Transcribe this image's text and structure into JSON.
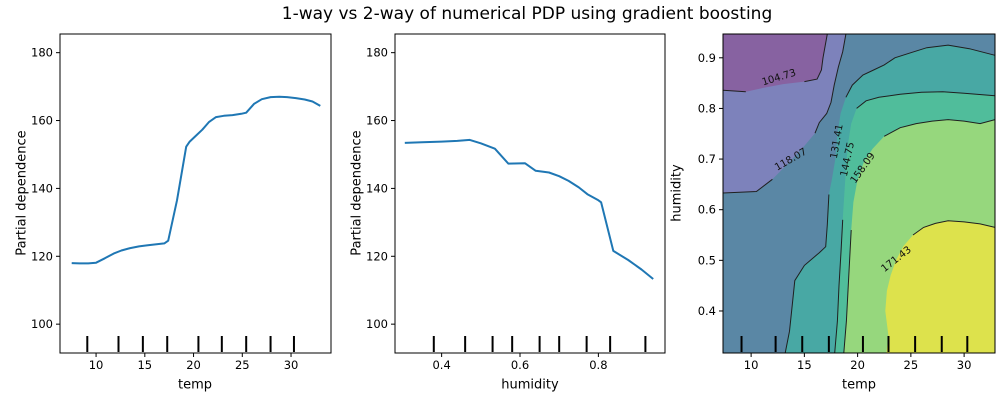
{
  "title": "1-way vs 2-way of numerical PDP using gradient boosting",
  "colors": {
    "line": "#1f77b4",
    "spine": "#000000",
    "contour_line": "#1f1f1f",
    "band_lt_104": "#8762a1",
    "band_104_118": "#7d82bb",
    "band_118_131": "#5a87a5",
    "band_131_144": "#48a8a4",
    "band_144_158": "#50bd9b",
    "band_158_171": "#96d77d",
    "band_gt_171": "#dde24c"
  },
  "chart_data": [
    {
      "id": "pdp-temp",
      "type": "line",
      "xlabel": "temp",
      "ylabel": "Partial dependence",
      "box": {
        "l": 60,
        "t": 34,
        "r": 331,
        "b": 353
      },
      "xlim": [
        6.3,
        34.1
      ],
      "ylim": [
        91.5,
        185.5
      ],
      "xticks": [
        10,
        15,
        20,
        25,
        30
      ],
      "xtick_labels": [
        "10",
        "15",
        "20",
        "25",
        "30"
      ],
      "yticks": [
        100,
        120,
        140,
        160,
        180
      ],
      "ytick_labels": [
        "100",
        "120",
        "140",
        "160",
        "180"
      ],
      "deciles": [
        9.1,
        12.3,
        14.8,
        17.3,
        20.5,
        22.9,
        25.4,
        27.9,
        30.3
      ],
      "points": [
        [
          7.5,
          118.0
        ],
        [
          8.3,
          117.9
        ],
        [
          9.2,
          117.9
        ],
        [
          10.0,
          118.1
        ],
        [
          10.9,
          119.4
        ],
        [
          11.8,
          120.8
        ],
        [
          12.6,
          121.7
        ],
        [
          13.5,
          122.4
        ],
        [
          14.4,
          122.9
        ],
        [
          15.2,
          123.2
        ],
        [
          16.1,
          123.5
        ],
        [
          17.0,
          123.8
        ],
        [
          17.4,
          124.6
        ],
        [
          18.3,
          136.5
        ],
        [
          19.25,
          152.3
        ],
        [
          19.6,
          153.8
        ],
        [
          20.2,
          155.4
        ],
        [
          20.9,
          157.3
        ],
        [
          21.6,
          159.6
        ],
        [
          22.3,
          161.0
        ],
        [
          23.1,
          161.4
        ],
        [
          24.0,
          161.6
        ],
        [
          24.9,
          162.0
        ],
        [
          25.4,
          162.3
        ],
        [
          26.2,
          164.9
        ],
        [
          27.0,
          166.3
        ],
        [
          27.9,
          166.9
        ],
        [
          28.8,
          167.0
        ],
        [
          29.6,
          166.9
        ],
        [
          30.5,
          166.6
        ],
        [
          31.4,
          166.2
        ],
        [
          32.2,
          165.6
        ],
        [
          33.0,
          164.3
        ]
      ]
    },
    {
      "id": "pdp-humidity",
      "type": "line",
      "xlabel": "humidity",
      "ylabel": "Partial dependence",
      "box": {
        "l": 395,
        "t": 34,
        "r": 665,
        "b": 353
      },
      "xlim": [
        0.281,
        0.97
      ],
      "ylim": [
        91.5,
        185.5
      ],
      "xticks": [
        0.4,
        0.6,
        0.8
      ],
      "xtick_labels": [
        "0.4",
        "0.6",
        "0.8"
      ],
      "yticks": [
        100,
        120,
        140,
        160,
        180
      ],
      "ytick_labels": [
        "100",
        "120",
        "140",
        "160",
        "180"
      ],
      "deciles": [
        0.38,
        0.46,
        0.53,
        0.58,
        0.65,
        0.7,
        0.77,
        0.83,
        0.92
      ],
      "points": [
        [
          0.306,
          153.4
        ],
        [
          0.35,
          153.6
        ],
        [
          0.4,
          153.8
        ],
        [
          0.44,
          154.0
        ],
        [
          0.472,
          154.3
        ],
        [
          0.5,
          153.3
        ],
        [
          0.536,
          151.7
        ],
        [
          0.57,
          147.3
        ],
        [
          0.613,
          147.4
        ],
        [
          0.64,
          145.2
        ],
        [
          0.674,
          144.7
        ],
        [
          0.7,
          143.6
        ],
        [
          0.724,
          142.2
        ],
        [
          0.75,
          140.3
        ],
        [
          0.772,
          138.3
        ],
        [
          0.8,
          136.5
        ],
        [
          0.807,
          135.9
        ],
        [
          0.838,
          121.6
        ],
        [
          0.876,
          118.9
        ],
        [
          0.91,
          116.1
        ],
        [
          0.94,
          113.3
        ]
      ]
    },
    {
      "id": "pdp-2way",
      "type": "contour",
      "xlabel": "temp",
      "ylabel": "humidity",
      "box": {
        "l": 723,
        "t": 34,
        "r": 995,
        "b": 353
      },
      "xlim": [
        7.36,
        32.9
      ],
      "ylim": [
        0.317,
        0.947
      ],
      "xticks": [
        10,
        15,
        20,
        25,
        30
      ],
      "xtick_labels": [
        "10",
        "15",
        "20",
        "25",
        "30"
      ],
      "yticks": [
        0.4,
        0.5,
        0.6,
        0.7,
        0.8,
        0.9
      ],
      "ytick_labels": [
        "0.4",
        "0.5",
        "0.6",
        "0.7",
        "0.8",
        "0.9"
      ],
      "deciles": [
        9.1,
        12.3,
        14.8,
        17.3,
        20.5,
        22.9,
        25.4,
        27.9,
        30.3
      ],
      "levels": [
        104.73,
        118.07,
        131.41,
        144.75,
        158.09,
        171.43
      ],
      "background_band": "#5a87a5",
      "contours": [
        {
          "level": 118.07,
          "close": "tl",
          "fill": "#7d82bb",
          "gap": [
            12.2,
            15.2
          ],
          "pts": [
            [
              7.36,
              0.633
            ],
            [
              10.5,
              0.636
            ],
            [
              12.0,
              0.66
            ],
            [
              13.5,
              0.692
            ],
            [
              15.0,
              0.726
            ],
            [
              16.0,
              0.751
            ],
            [
              16.4,
              0.772
            ],
            [
              17.1,
              0.79
            ],
            [
              17.5,
              0.812
            ],
            [
              17.8,
              0.846
            ],
            [
              18.2,
              0.882
            ],
            [
              18.6,
              0.912
            ],
            [
              18.9,
              0.947
            ]
          ]
        },
        {
          "level": 104.73,
          "close": "tl",
          "fill": "#8762a1",
          "gap": [
            10.9,
            14.4
          ],
          "pts": [
            [
              7.36,
              0.836
            ],
            [
              9.5,
              0.833
            ],
            [
              11.0,
              0.84
            ],
            [
              13.0,
              0.848
            ],
            [
              15.0,
              0.853
            ],
            [
              16.2,
              0.858
            ],
            [
              16.6,
              0.876
            ],
            [
              16.75,
              0.9
            ],
            [
              17.15,
              0.947
            ]
          ]
        },
        {
          "level": 131.41,
          "close": "br",
          "fill": "#48a8a4",
          "gapy": [
            0.655,
            0.815
          ],
          "pts": [
            [
              13.2,
              0.317
            ],
            [
              13.6,
              0.36
            ],
            [
              13.9,
              0.42
            ],
            [
              14.1,
              0.46
            ],
            [
              15.0,
              0.49
            ],
            [
              16.4,
              0.515
            ],
            [
              17.0,
              0.527
            ],
            [
              17.15,
              0.57
            ],
            [
              17.3,
              0.63
            ],
            [
              17.6,
              0.662
            ],
            [
              17.9,
              0.7
            ],
            [
              18.1,
              0.75
            ],
            [
              18.4,
              0.79
            ],
            [
              18.9,
              0.822
            ],
            [
              19.5,
              0.846
            ],
            [
              20.5,
              0.866
            ],
            [
              21.5,
              0.876
            ],
            [
              22.5,
              0.886
            ],
            [
              23.5,
              0.9
            ],
            [
              25.0,
              0.91
            ],
            [
              26.5,
              0.92
            ],
            [
              28.5,
              0.925
            ],
            [
              30.5,
              0.918
            ],
            [
              32.9,
              0.905
            ]
          ]
        },
        {
          "level": 144.75,
          "close": "br",
          "fill": "#50bd9b",
          "gapy": [
            0.62,
            0.78
          ],
          "pts": [
            [
              17.85,
              0.317
            ],
            [
              18.1,
              0.38
            ],
            [
              18.25,
              0.45
            ],
            [
              18.45,
              0.52
            ],
            [
              18.6,
              0.58
            ],
            [
              18.75,
              0.63
            ],
            [
              18.9,
              0.68
            ],
            [
              19.1,
              0.73
            ],
            [
              19.4,
              0.77
            ],
            [
              19.9,
              0.8
            ],
            [
              20.8,
              0.815
            ],
            [
              22.0,
              0.822
            ],
            [
              24.0,
              0.828
            ],
            [
              26.0,
              0.832
            ],
            [
              28.0,
              0.833
            ],
            [
              30.0,
              0.83
            ],
            [
              32.9,
              0.825
            ]
          ]
        },
        {
          "level": 158.09,
          "close": "br",
          "fill": "#96d77d",
          "gap": [
            19.4,
            21.7
          ],
          "pts": [
            [
              18.7,
              0.317
            ],
            [
              18.95,
              0.38
            ],
            [
              19.1,
              0.44
            ],
            [
              19.25,
              0.5
            ],
            [
              19.4,
              0.56
            ],
            [
              19.6,
              0.615
            ],
            [
              20.0,
              0.66
            ],
            [
              20.6,
              0.695
            ],
            [
              21.4,
              0.72
            ],
            [
              22.5,
              0.745
            ],
            [
              24.0,
              0.762
            ],
            [
              25.5,
              0.77
            ],
            [
              27.0,
              0.775
            ],
            [
              28.5,
              0.778
            ],
            [
              30.0,
              0.775
            ],
            [
              31.5,
              0.77
            ],
            [
              32.9,
              0.778
            ]
          ]
        },
        {
          "level": 171.43,
          "close": "br",
          "fill": "#dde24c",
          "gap": [
            22.55,
            24.7
          ],
          "pts": [
            [
              22.7,
              0.317
            ],
            [
              22.9,
              0.35
            ],
            [
              22.6,
              0.4
            ],
            [
              22.75,
              0.44
            ],
            [
              23.1,
              0.47
            ],
            [
              23.6,
              0.5
            ],
            [
              24.3,
              0.528
            ],
            [
              25.2,
              0.55
            ],
            [
              26.2,
              0.565
            ],
            [
              27.3,
              0.573
            ],
            [
              28.5,
              0.578
            ],
            [
              30.0,
              0.576
            ],
            [
              31.5,
              0.572
            ],
            [
              32.9,
              0.565
            ]
          ]
        }
      ],
      "labels": [
        {
          "text": "104.73",
          "x": 12.6,
          "y": 0.862,
          "rot": -17
        },
        {
          "text": "118.07",
          "x": 13.7,
          "y": 0.7,
          "rot": -30
        },
        {
          "text": "131.41",
          "x": 18.0,
          "y": 0.735,
          "rot": -80
        },
        {
          "text": "144.75",
          "x": 19.0,
          "y": 0.7,
          "rot": -78
        },
        {
          "text": "158.09",
          "x": 20.45,
          "y": 0.683,
          "rot": -55
        },
        {
          "text": "171.43",
          "x": 23.6,
          "y": 0.503,
          "rot": -38
        }
      ]
    }
  ]
}
